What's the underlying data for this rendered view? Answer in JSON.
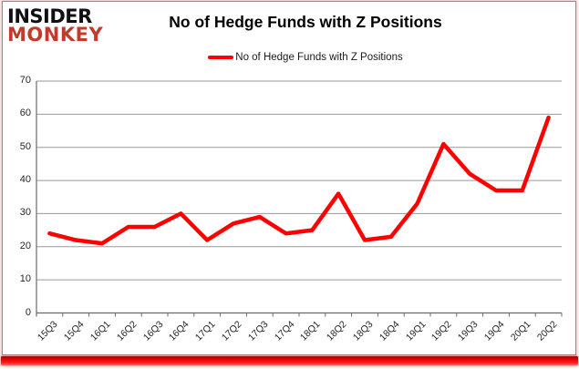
{
  "logo": {
    "line1": "INSIDER",
    "line2": "MONKEY"
  },
  "header": {
    "title": "No of Hedge Funds with Z Positions"
  },
  "legend": {
    "label": "No of Hedge Funds with Z Positions"
  },
  "colors": {
    "series_line": "#fe0000",
    "logo_black": "#111111",
    "logo_red": "#c23b2a",
    "gridline": "#9a9a9a",
    "axis": "#6b6b6b",
    "bottom_bar_red": "#ff1c1c"
  },
  "chart_data": {
    "type": "line",
    "title": "No of Hedge Funds with Z Positions",
    "xlabel": "",
    "ylabel": "",
    "categories": [
      "15Q3",
      "15Q4",
      "16Q1",
      "16Q2",
      "16Q3",
      "16Q4",
      "17Q1",
      "17Q2",
      "17Q3",
      "17Q4",
      "18Q1",
      "18Q2",
      "18Q3",
      "18Q4",
      "19Q1",
      "19Q2",
      "19Q3",
      "19Q4",
      "20Q1",
      "20Q2"
    ],
    "series": [
      {
        "name": "No of Hedge Funds with Z Positions",
        "color": "#fe0000",
        "values": [
          24,
          22,
          21,
          26,
          26,
          30,
          22,
          27,
          29,
          24,
          25,
          36,
          22,
          23,
          33,
          51,
          42,
          37,
          37,
          59
        ]
      }
    ],
    "ylim": [
      0,
      70
    ],
    "y_ticks": [
      0,
      10,
      20,
      30,
      40,
      50,
      60,
      70
    ],
    "grid": true,
    "legend_position": "top",
    "x_tick_rotation_deg": 45
  }
}
